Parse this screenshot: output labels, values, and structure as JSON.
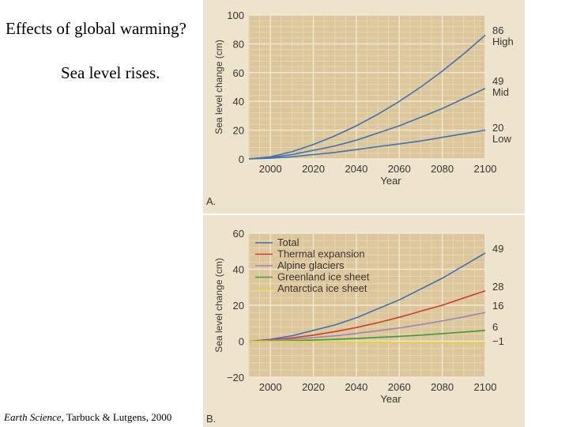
{
  "slide": {
    "title": "Effects of global warming?",
    "subtitle": "Sea level rises.",
    "citation": {
      "book": "Earth Science",
      "rest": ", Tarbuck & Lutgens, 2000"
    }
  },
  "chart_data": [
    {
      "type": "line",
      "panel_label": "A.",
      "xlabel": "Year",
      "ylabel": "Sea level change (cm)",
      "xlim": [
        1990,
        2100
      ],
      "ylim": [
        0,
        100
      ],
      "x_ticks": [
        2000,
        2020,
        2040,
        2060,
        2080,
        2100
      ],
      "y_ticks": [
        0,
        20,
        40,
        60,
        80,
        100
      ],
      "grid": true,
      "x": [
        1990,
        2000,
        2010,
        2020,
        2030,
        2040,
        2050,
        2060,
        2070,
        2080,
        2090,
        2100
      ],
      "series": [
        {
          "name": "High",
          "end_label": "86",
          "color": "#3f72b0",
          "values": [
            0,
            1.5,
            5,
            10,
            16,
            23,
            31,
            40,
            50,
            61,
            73,
            86
          ]
        },
        {
          "name": "Mid",
          "end_label": "49",
          "color": "#3f72b0",
          "values": [
            0,
            1,
            3,
            6,
            9,
            13,
            18,
            23,
            29,
            35,
            42,
            49
          ]
        },
        {
          "name": "Low",
          "end_label": "20",
          "color": "#3f72b0",
          "values": [
            0,
            0.5,
            1.5,
            3,
            4.5,
            6.5,
            8.5,
            10.5,
            12.5,
            15,
            17.5,
            20
          ]
        }
      ]
    },
    {
      "type": "line",
      "panel_label": "B.",
      "xlabel": "Year",
      "ylabel": "Sea level change (cm)",
      "xlim": [
        1990,
        2100
      ],
      "ylim": [
        -20,
        60
      ],
      "x_ticks": [
        2000,
        2020,
        2040,
        2060,
        2080,
        2100
      ],
      "y_ticks": [
        -20,
        0,
        20,
        40,
        60
      ],
      "grid": true,
      "legend_position": "top-left",
      "x": [
        1990,
        2000,
        2010,
        2020,
        2030,
        2040,
        2050,
        2060,
        2070,
        2080,
        2090,
        2100
      ],
      "series": [
        {
          "name": "Total",
          "end_label": "49",
          "color": "#3f72b0",
          "values": [
            0,
            1,
            3,
            6,
            9,
            13,
            18,
            23,
            29,
            35,
            42,
            49
          ]
        },
        {
          "name": "Thermal expansion",
          "end_label": "28",
          "color": "#cf3a2c",
          "values": [
            0,
            0.6,
            1.8,
            3.4,
            5.3,
            7.6,
            10.3,
            13.3,
            16.7,
            20,
            24,
            28
          ]
        },
        {
          "name": "Alpine glaciers",
          "end_label": "16",
          "color": "#9b86b4",
          "values": [
            0,
            0.4,
            1.1,
            2,
            3,
            4.3,
            5.8,
            7.4,
            9.2,
            11.3,
            13.5,
            16
          ]
        },
        {
          "name": "Greenland ice sheet",
          "end_label": "6",
          "color": "#3c9a3c",
          "values": [
            0,
            0.1,
            0.3,
            0.6,
            1,
            1.5,
            2.1,
            2.7,
            3.4,
            4.2,
            5.1,
            6
          ]
        },
        {
          "name": "Antarctica ice sheet",
          "end_label": "−1",
          "color": "#e3d23a",
          "values": [
            0,
            0,
            -0.1,
            -0.2,
            -0.3,
            -0.4,
            -0.5,
            -0.6,
            -0.7,
            -0.8,
            -0.9,
            -1
          ]
        }
      ]
    }
  ]
}
